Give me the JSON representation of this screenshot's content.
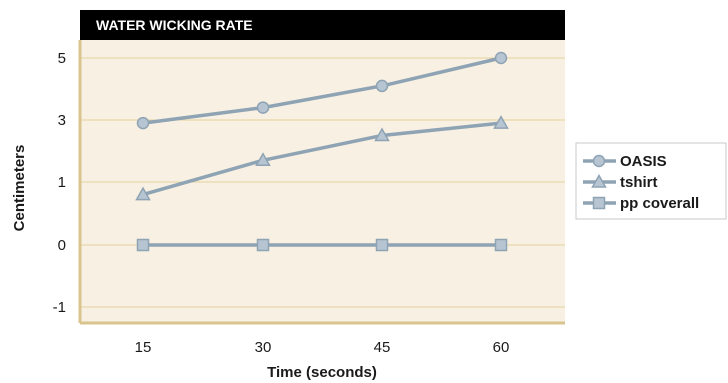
{
  "chart_data": {
    "type": "line",
    "title": "WATER WICKING RATE",
    "xlabel": "Time (seconds)",
    "ylabel": "Centimeters",
    "categories": [
      "15",
      "30",
      "45",
      "60"
    ],
    "y_ticks": [
      "5",
      "3",
      "1",
      "0",
      "-1"
    ],
    "series": [
      {
        "name": "OASIS",
        "values": [
          2.9,
          3.4,
          4.1,
          5.0
        ],
        "marker": "circle"
      },
      {
        "name": "tshirt",
        "values": [
          0.8,
          1.7,
          2.5,
          2.9
        ],
        "marker": "triangle"
      },
      {
        "name": "pp coverall",
        "values": [
          0,
          0,
          0,
          0
        ],
        "marker": "square"
      }
    ],
    "legend_position": "right",
    "grid": true
  },
  "colors": {
    "plot_background": "#f8f0e2",
    "gridline": "#e4d29d",
    "axis_line": "#d9c48e",
    "title_bar": "#000000",
    "series_line": "#8ea3b4",
    "marker_fill": "#b7c5d2",
    "marker_stroke": "#8ea3b4"
  }
}
